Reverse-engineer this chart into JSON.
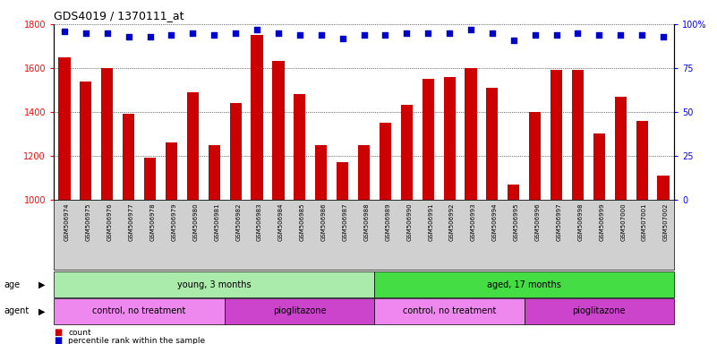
{
  "title": "GDS4019 / 1370111_at",
  "samples": [
    "GSM506974",
    "GSM506975",
    "GSM506976",
    "GSM506977",
    "GSM506978",
    "GSM506979",
    "GSM506980",
    "GSM506981",
    "GSM506982",
    "GSM506983",
    "GSM506984",
    "GSM506985",
    "GSM506986",
    "GSM506987",
    "GSM506988",
    "GSM506989",
    "GSM506990",
    "GSM506991",
    "GSM506992",
    "GSM506993",
    "GSM506994",
    "GSM506995",
    "GSM506996",
    "GSM506997",
    "GSM506998",
    "GSM506999",
    "GSM507000",
    "GSM507001",
    "GSM507002"
  ],
  "counts": [
    1650,
    1540,
    1600,
    1390,
    1190,
    1260,
    1490,
    1250,
    1440,
    1750,
    1630,
    1480,
    1250,
    1170,
    1250,
    1350,
    1430,
    1550,
    1560,
    1600,
    1510,
    1070,
    1400,
    1590,
    1590,
    1300,
    1470,
    1360,
    1110
  ],
  "percentiles": [
    96,
    95,
    95,
    93,
    93,
    94,
    95,
    94,
    95,
    97,
    95,
    94,
    94,
    92,
    94,
    94,
    95,
    95,
    95,
    97,
    95,
    91,
    94,
    94,
    95,
    94,
    94,
    94,
    93
  ],
  "ylim_left": [
    1000,
    1800
  ],
  "ylim_right": [
    0,
    100
  ],
  "yticks_left": [
    1000,
    1200,
    1400,
    1600,
    1800
  ],
  "yticks_right": [
    0,
    25,
    50,
    75,
    100
  ],
  "bar_color": "#cc0000",
  "dot_color": "#0000cc",
  "chart_bg": "#ffffff",
  "fig_bg": "#ffffff",
  "xtick_area_bg": "#d0d0d0",
  "age_groups": [
    {
      "label": "young, 3 months",
      "start": 0,
      "end": 15,
      "color": "#aaeaaa"
    },
    {
      "label": "aged, 17 months",
      "start": 15,
      "end": 29,
      "color": "#44dd44"
    }
  ],
  "agent_groups": [
    {
      "label": "control, no treatment",
      "start": 0,
      "end": 8,
      "color": "#ee88ee"
    },
    {
      "label": "pioglitazone",
      "start": 8,
      "end": 15,
      "color": "#cc44cc"
    },
    {
      "label": "control, no treatment",
      "start": 15,
      "end": 22,
      "color": "#ee88ee"
    },
    {
      "label": "pioglitazone",
      "start": 22,
      "end": 29,
      "color": "#cc44cc"
    }
  ],
  "legend_count_color": "#cc0000",
  "legend_pct_color": "#0000cc"
}
